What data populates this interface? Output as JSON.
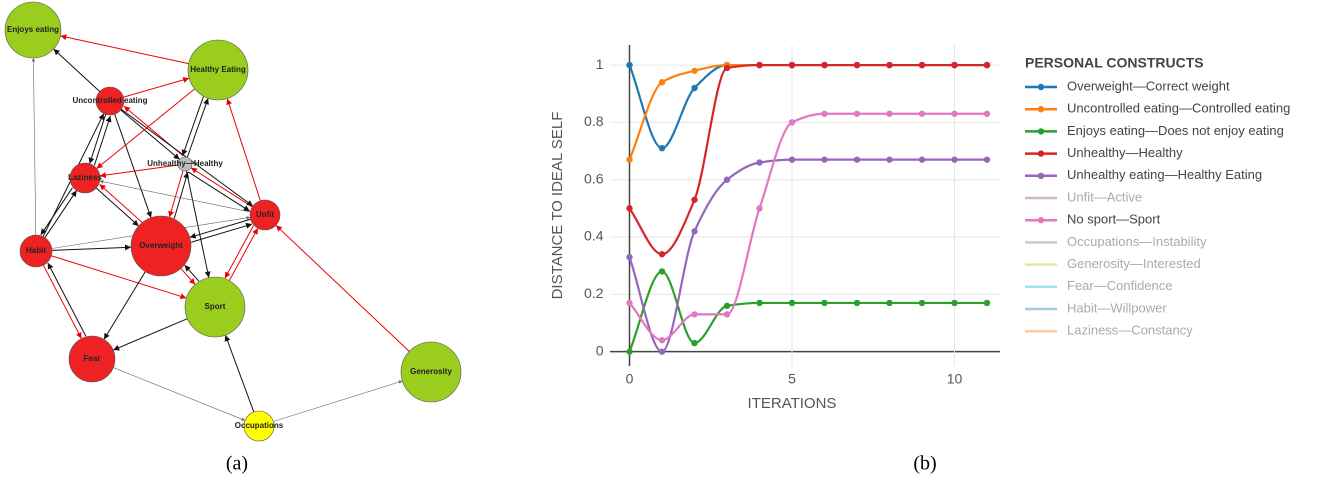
{
  "diagram": {
    "nodes": [
      {
        "label": "Enjoys eating",
        "color": "#9acd1e"
      },
      {
        "label": "Healthy Eating",
        "color": "#9acd1e"
      },
      {
        "label": "Uncontrolled eating",
        "color": "#ee2222"
      },
      {
        "label": "Unhealthy—Healthy",
        "color": "#bdbdbd"
      },
      {
        "label": "Laziness",
        "color": "#ee2222"
      },
      {
        "label": "Unfit",
        "color": "#ee2222"
      },
      {
        "label": "Habit",
        "color": "#ee2222"
      },
      {
        "label": "Overweight",
        "color": "#ee2222"
      },
      {
        "label": "Sport",
        "color": "#9acd1e"
      },
      {
        "label": "Fear",
        "color": "#ee2222"
      },
      {
        "label": "Generosity",
        "color": "#9acd1e"
      },
      {
        "label": "Occupations",
        "color": "#ffff00"
      }
    ]
  },
  "chart_data": {
    "type": "line",
    "y_label": "DISTANCE TO IDEAL SELF",
    "x_label": "ITERATIONS",
    "legend_title": "PERSONAL CONSTRUCTS",
    "x": [
      0,
      1,
      2,
      3,
      4,
      5,
      6,
      7,
      8,
      9,
      10,
      11
    ],
    "xlim": [
      -0.6,
      11.4
    ],
    "xticks": [
      0,
      5,
      10
    ],
    "ylim": [
      -0.05,
      1.07
    ],
    "yticks": [
      0,
      0.2,
      0.4,
      0.6,
      0.8,
      1
    ],
    "grid": true,
    "legend": "right",
    "series": [
      {
        "name": "Overweight—Correct weight",
        "color": "#1f77b4",
        "values": [
          1,
          0.71,
          0.92,
          1,
          1,
          1,
          1,
          1,
          1,
          1,
          1,
          1
        ]
      },
      {
        "name": "Uncontrolled eating—Controlled eating",
        "color": "#ff7f0e",
        "values": [
          0.67,
          0.94,
          0.98,
          1,
          1,
          1,
          1,
          1,
          1,
          1,
          1,
          1
        ]
      },
      {
        "name": "Enjoys eating—Does not enjoy eating",
        "color": "#2ca02c",
        "values": [
          0,
          0.28,
          0.03,
          0.16,
          0.17,
          0.17,
          0.17,
          0.17,
          0.17,
          0.17,
          0.17,
          0.17
        ]
      },
      {
        "name": "Unhealthy—Healthy",
        "color": "#d62728",
        "values": [
          0.5,
          0.34,
          0.53,
          0.99,
          1,
          1,
          1,
          1,
          1,
          1,
          1,
          1
        ]
      },
      {
        "name": "Unhealthy eating—Healthy Eating",
        "color": "#9467bd",
        "values": [
          0.33,
          0,
          0.42,
          0.6,
          0.66,
          0.67,
          0.67,
          0.67,
          0.67,
          0.67,
          0.67,
          0.67
        ]
      },
      {
        "name": "Unfit—Active",
        "color": "#8c564b",
        "visible": false
      },
      {
        "name": "No sport—Sport",
        "color": "#e377c2",
        "values": [
          0.17,
          0.04,
          0.13,
          0.13,
          0.5,
          0.8,
          0.83,
          0.83,
          0.83,
          0.83,
          0.83,
          0.83
        ]
      },
      {
        "name": "Occupations—Instability",
        "color": "#7f7f7f",
        "visible": false
      },
      {
        "name": "Generosity—Interested",
        "color": "#bcbd22",
        "visible": false
      },
      {
        "name": "Fear—Confidence",
        "color": "#17becf",
        "visible": false
      },
      {
        "name": "Habit—Willpower",
        "color": "#1f77b4",
        "visible": false
      },
      {
        "name": "Laziness—Constancy",
        "color": "#ff7f0e",
        "visible": false
      }
    ]
  },
  "panel_labels": [
    "(a)",
    "(b)"
  ]
}
